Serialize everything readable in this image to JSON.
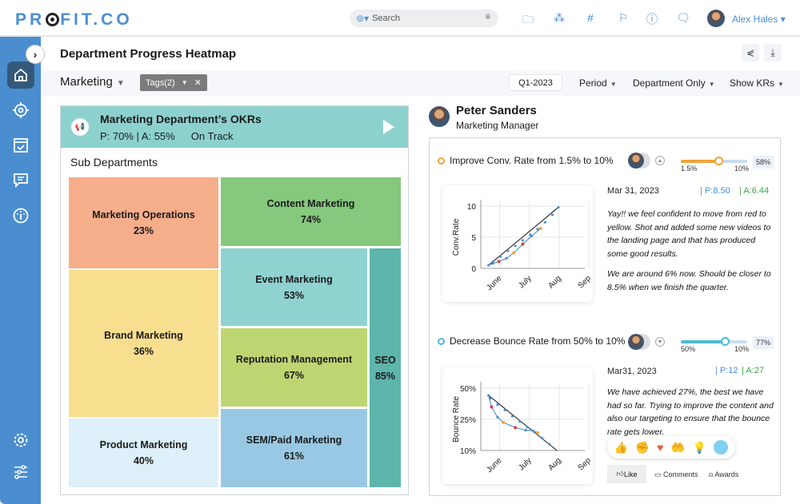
{
  "app": {
    "logo": "PROFIT.CO",
    "search_placeholder": "Search",
    "user_name": "Alex Hales"
  },
  "topbar_icons": [
    "folder-search-icon",
    "hierarchy-icon",
    "hashtag-icon",
    "flag-icon",
    "help-icon",
    "chat-icon"
  ],
  "sidebar": {
    "items": [
      {
        "name": "home",
        "icon": "home-icon",
        "active": true
      },
      {
        "name": "objectives",
        "icon": "target-icon"
      },
      {
        "name": "tasks",
        "icon": "calendar-check-icon"
      },
      {
        "name": "feedback",
        "icon": "message-icon"
      },
      {
        "name": "dashboard",
        "icon": "gauge-icon"
      }
    ],
    "bottom_items": [
      {
        "name": "settings",
        "icon": "gear-icon"
      },
      {
        "name": "preferences",
        "icon": "sliders-icon"
      }
    ]
  },
  "page": {
    "title": "Department Progress Heatmap"
  },
  "filters": {
    "department": "Marketing",
    "tags": "Tags(2)",
    "period_value": "Q1-2023",
    "period": "Period",
    "scope": "Department Only",
    "show": "Show KRs"
  },
  "okr": {
    "title": "Marketing Department’s OKRs",
    "progress": "P: 70% | A: 55%",
    "status": "On Track",
    "sub_title": "Sub Departments",
    "sub_departments": [
      {
        "name": "Marketing Operations",
        "pct": "23%",
        "color": "#f7ae8a"
      },
      {
        "name": "Content Marketing",
        "pct": "74%",
        "color": "#86c87d"
      },
      {
        "name": "Event Marketing",
        "pct": "53%",
        "color": "#8fd2d0"
      },
      {
        "name": "Brand Marketing",
        "pct": "36%",
        "color": "#f8de8f"
      },
      {
        "name": "Reputation Management",
        "pct": "67%",
        "color": "#bed672"
      },
      {
        "name": "SEO",
        "pct": "85%",
        "color": "#5db5ac"
      },
      {
        "name": "Product Marketing",
        "pct": "40%",
        "color": "#def0f9"
      },
      {
        "name": "SEM/Paid Marketing",
        "pct": "61%",
        "color": "#99c8e5"
      }
    ]
  },
  "owner": {
    "name": "Peter Sanders",
    "role": "Marketing Manager"
  },
  "key_results": [
    {
      "title": "Improve  Conv. Rate from 1.5% to 10%",
      "dot_color": "#f4a23a",
      "start": "1.5%",
      "target": "10%",
      "progress_pct": "58%",
      "progress_value": 58,
      "date": "Mar 31, 2023",
      "planned": "P:8.50",
      "actual": "A:6.44",
      "comment": [
        "Yay!! we feel confident to move from red to yellow. Shot and added some new videos to the landing page and that has produced some good results.",
        "We are around 6% now. Should be closer to 8.5% when we finish the quarter."
      ]
    },
    {
      "title": "Decrease Bounce Rate from 50% to 10%",
      "dot_color": "#4bbcd6",
      "start": "50%",
      "target": "10%",
      "progress_pct": "77%",
      "progress_value": 77,
      "date": "Mar31, 2023",
      "planned": "P:12",
      "actual": "A:27",
      "comment": [
        "We have achieved 27%, the best we have had so far. Trying to improve the content and also our targeting to ensure that the bounce rate gets lower."
      ]
    }
  ],
  "chart_data": [
    {
      "type": "line",
      "ylabel": "Conv.Rate",
      "x_ticks": [
        "June",
        "July",
        "Aug",
        "Sep"
      ],
      "y_ticks": [
        "0",
        "5",
        "10"
      ],
      "ylim": [
        0,
        10
      ],
      "series": [
        {
          "name": "planned",
          "color": "#222222",
          "x": [
            0.1,
            2.45
          ],
          "y": [
            0.5,
            9.8
          ]
        },
        {
          "name": "planned-points",
          "color": "#4a90d0",
          "x": [
            0.25,
            0.5,
            0.75,
            1.0,
            1.25,
            1.5,
            1.75,
            2.0,
            2.25,
            2.45
          ],
          "y": [
            1.1,
            1.9,
            2.8,
            3.6,
            4.5,
            5.4,
            6.3,
            7.4,
            8.6,
            9.8
          ]
        },
        {
          "name": "actual",
          "color": "#4a90d0",
          "x": [
            0.1,
            0.25,
            0.45,
            0.7,
            0.95,
            1.25,
            1.55,
            1.85
          ],
          "y": [
            0.5,
            0.8,
            1.1,
            1.6,
            2.5,
            3.9,
            5.2,
            6.4
          ]
        }
      ],
      "highlight_points": [
        {
          "x": 0.45,
          "y": 1.1,
          "color": "#e04040"
        },
        {
          "x": 0.95,
          "y": 2.5,
          "color": "#f4a23a"
        },
        {
          "x": 1.25,
          "y": 3.9,
          "color": "#e04040"
        },
        {
          "x": 1.85,
          "y": 6.4,
          "color": "#f4a23a"
        }
      ]
    },
    {
      "type": "line",
      "ylabel": "Bounce Rate",
      "x_ticks": [
        "June",
        "July",
        "Aug",
        "Sep"
      ],
      "y_ticks": [
        "10%",
        "25%",
        "50%"
      ],
      "ylim": [
        0,
        3
      ],
      "series": [
        {
          "name": "planned",
          "color": "#222222",
          "x": [
            0.1,
            2.4
          ],
          "y": [
            2.65,
            0
          ]
        },
        {
          "name": "planned-points",
          "color": "#4a90d0",
          "x": [
            0.15,
            0.4,
            0.65,
            0.9,
            1.15,
            1.4,
            1.65,
            1.9,
            2.15
          ],
          "y": [
            2.5,
            2.2,
            1.95,
            1.65,
            1.4,
            1.13,
            0.88,
            0.6,
            0.3
          ]
        },
        {
          "name": "actual",
          "color": "#4a90d0",
          "x": [
            0.1,
            0.2,
            0.4,
            0.6,
            1.0,
            1.35,
            1.6,
            1.75
          ],
          "y": [
            2.65,
            2.1,
            1.6,
            1.35,
            1.1,
            0.98,
            0.95,
            0.85
          ]
        }
      ],
      "highlight_points": [
        {
          "x": 0.2,
          "y": 2.1,
          "color": "#e04040"
        },
        {
          "x": 0.6,
          "y": 1.35,
          "color": "#f4a23a"
        },
        {
          "x": 1.0,
          "y": 1.1,
          "color": "#e04040"
        },
        {
          "x": 1.75,
          "y": 0.85,
          "color": "#f4a23a"
        }
      ]
    }
  ],
  "reactions": [
    "thumbs-up-icon",
    "clap-icon",
    "heart-icon",
    "heart-hand-icon",
    "bulb-icon",
    "smile-icon"
  ],
  "actions": {
    "like": "Like",
    "comments": "Comments",
    "awards": "Awards"
  }
}
